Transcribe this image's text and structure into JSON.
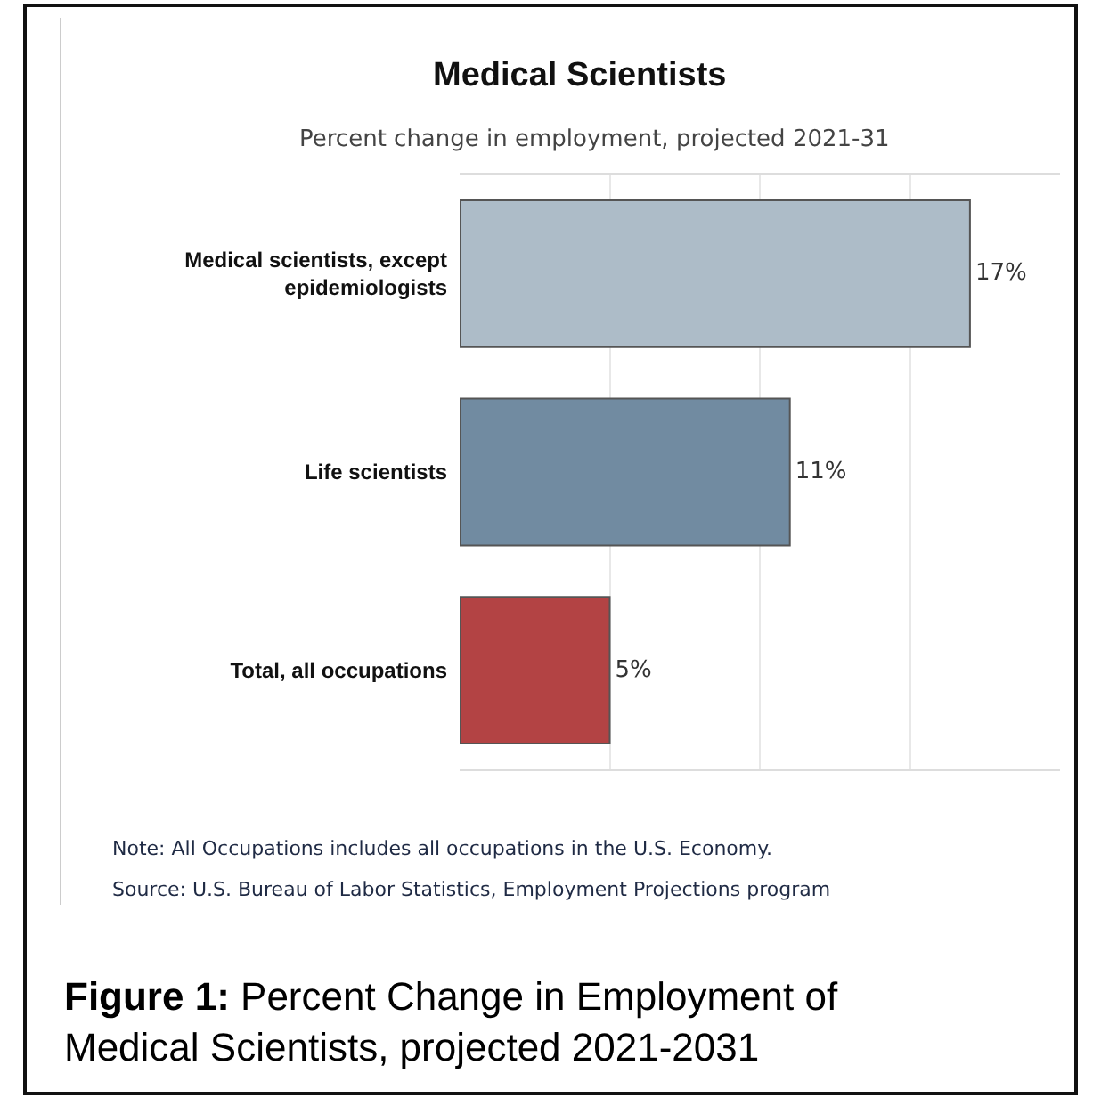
{
  "chart_data": {
    "type": "bar",
    "orientation": "horizontal",
    "title": "Medical Scientists",
    "subtitle": "Percent change in employment, projected 2021-31",
    "categories": [
      "Medical scientists, except epidemiologists",
      "Life scientists",
      "Total, all occupations"
    ],
    "values": [
      17,
      11,
      5
    ],
    "colors": [
      "#adbcc8",
      "#718ba1",
      "#b34344"
    ],
    "value_labels": [
      "17%",
      "11%",
      "5%"
    ],
    "xlim": [
      0,
      20
    ],
    "xticks": [
      {
        "value": 5,
        "label": null
      },
      {
        "value": 10,
        "label": null
      },
      {
        "value": 15,
        "label": null
      }
    ],
    "tick_labels": "y",
    "grid": "x",
    "annotations": [
      "Note: All Occupations includes all occupations in the U.S. Economy.",
      "Source: U.S. Bureau of Labor Statistics, Employment Projections program",
      "Figure 1: Percent Change in Employment of Medical Scientists, projected 2021-2031"
    ]
  }
}
